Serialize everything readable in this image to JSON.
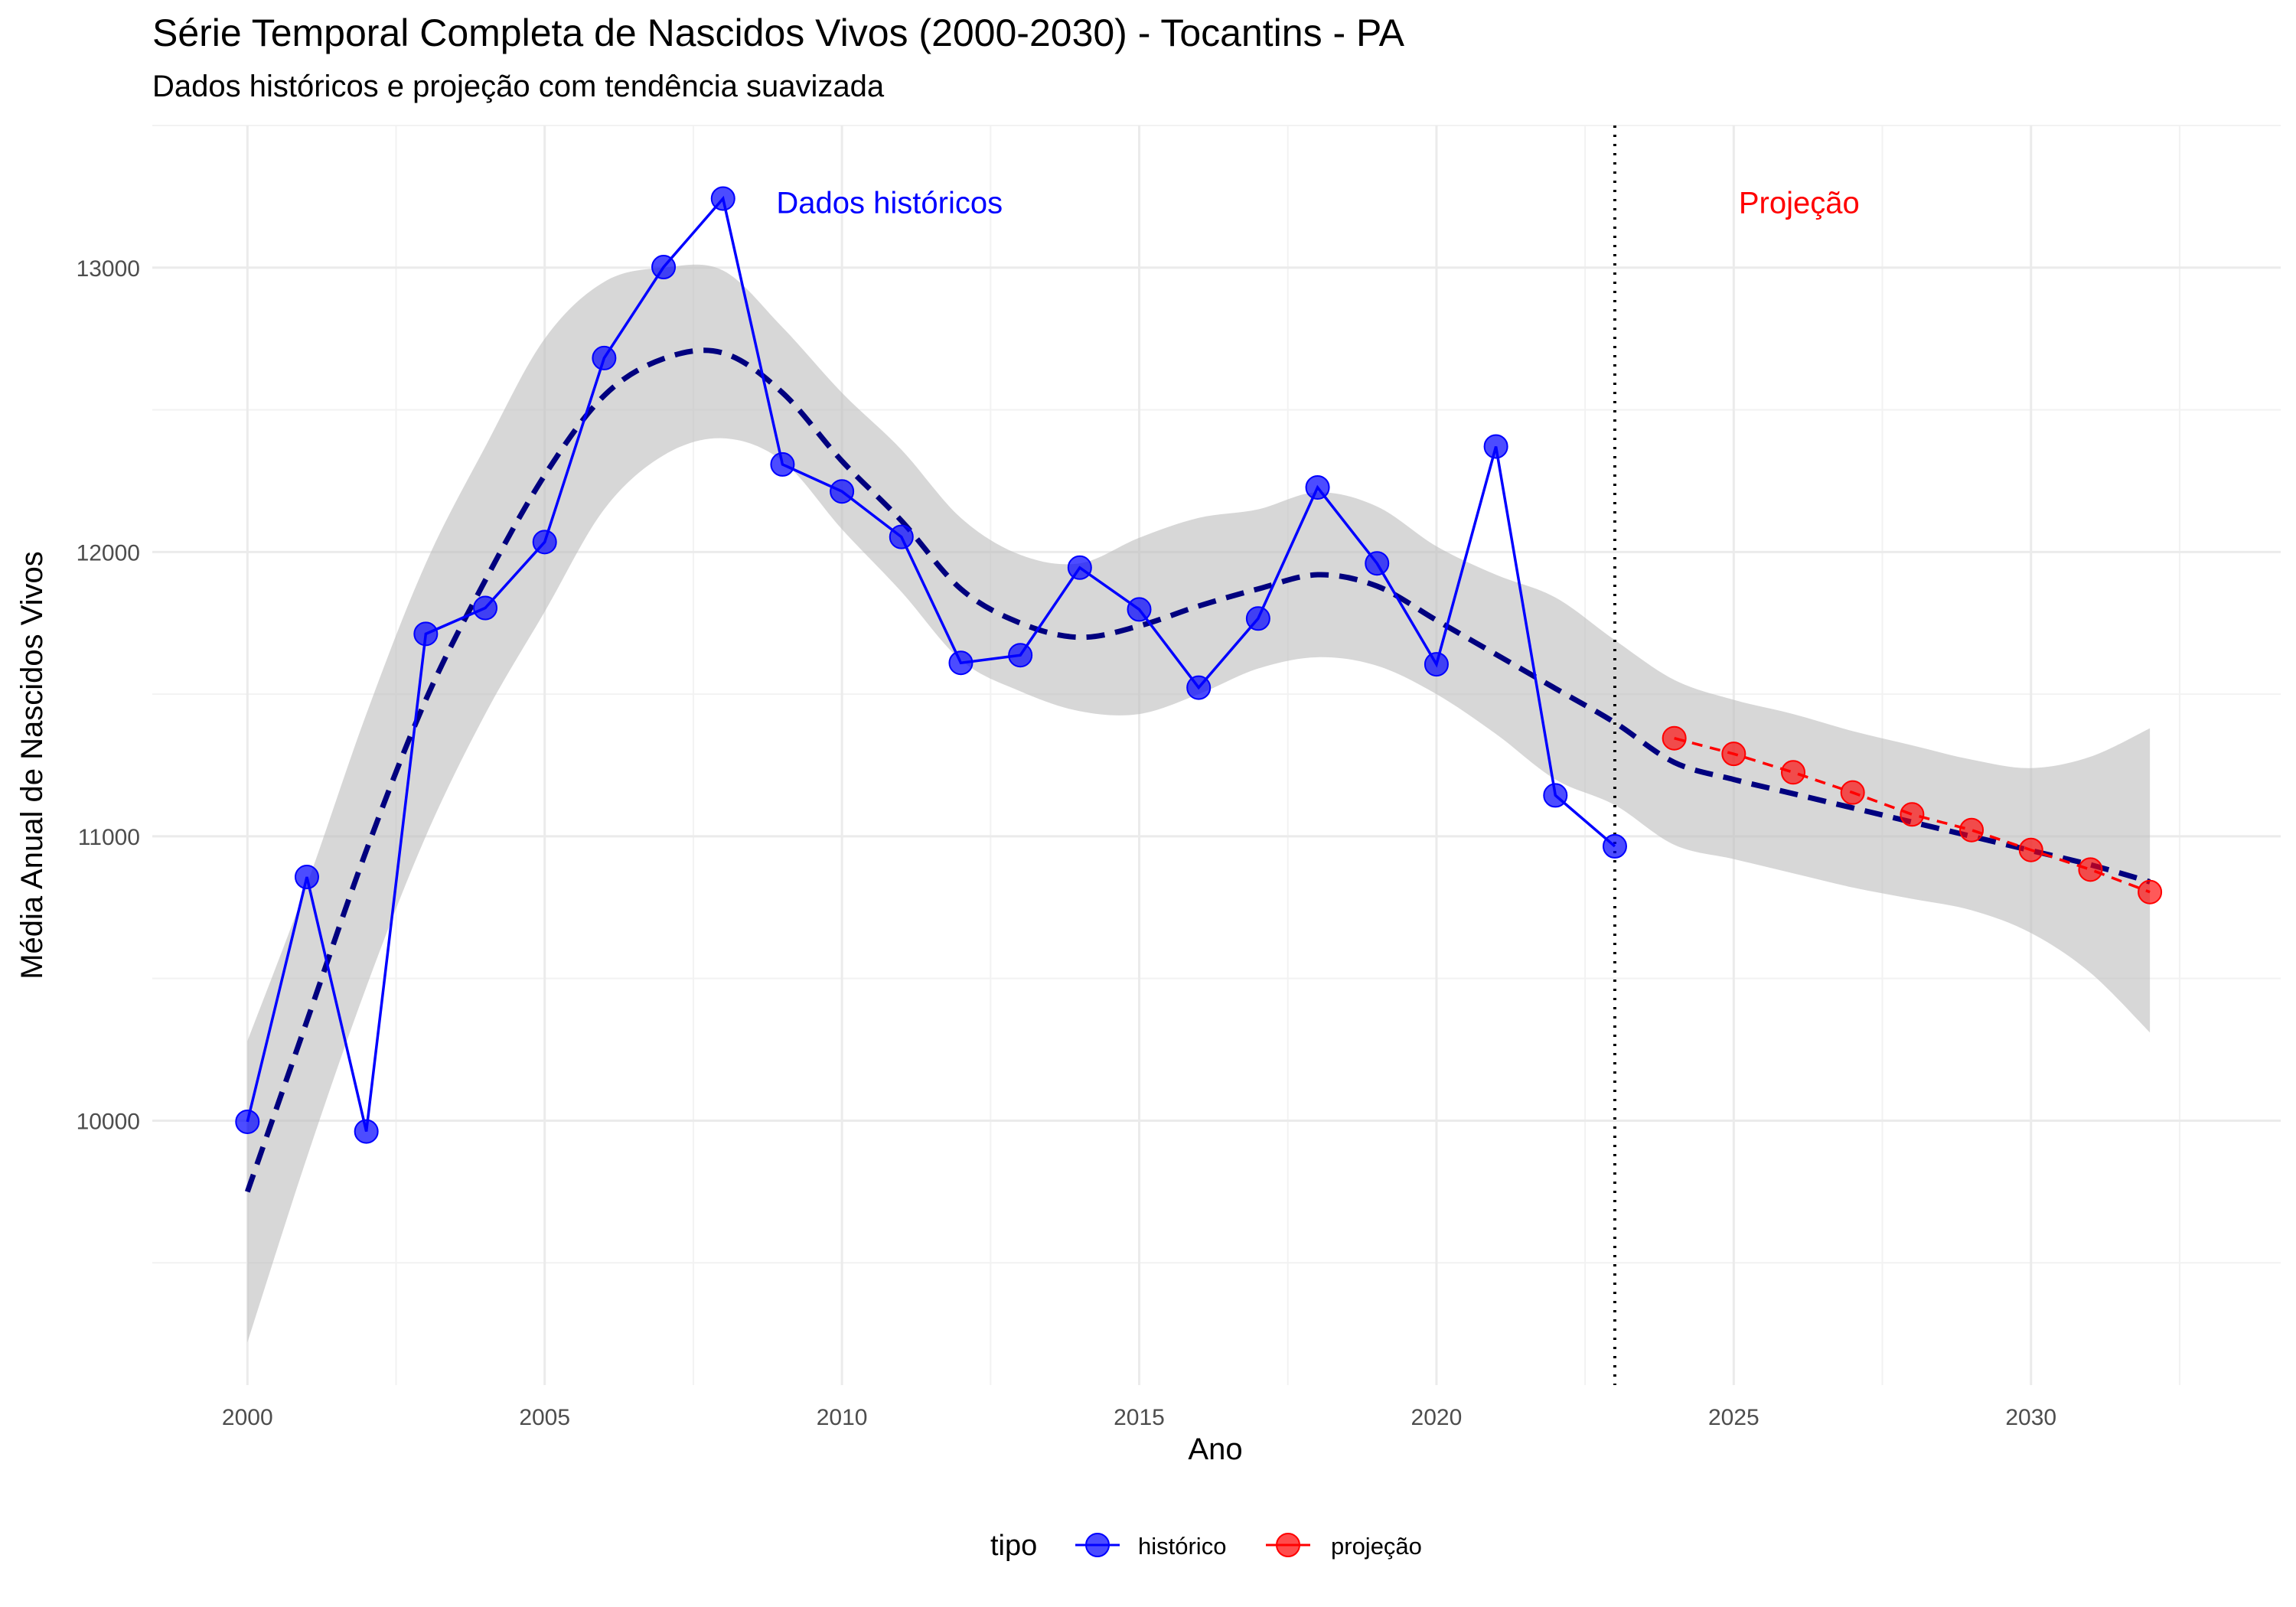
{
  "chart_data": {
    "type": "line",
    "title": "Série Temporal Completa de Nascidos Vivos (2000-2030) -  Tocantins - PA",
    "subtitle": "Dados históricos e projeção com tendência suavizada",
    "xlabel": "Ano",
    "ylabel": "Média Anual de Nascidos Vivos",
    "xlim": [
      1998.4,
      2034.2
    ],
    "ylim": [
      9070,
      13500
    ],
    "x_ticks": [
      2000,
      2005,
      2010,
      2015,
      2020,
      2025,
      2030
    ],
    "y_ticks": [
      10000,
      11000,
      12000,
      13000
    ],
    "grid": true,
    "legend_position": "bottom",
    "legend_title": "tipo",
    "colors": {
      "historico": "#0000ff",
      "projecao": "#ff0000",
      "trend": "#00007f",
      "band": "#bebebe",
      "divider": "#000000"
    },
    "divider_x": 2023,
    "annotations": [
      {
        "text": "Dados históricos",
        "x": 2010.8,
        "y": 13230,
        "color": "#0000ff"
      },
      {
        "text": "Projeção",
        "x": 2026.1,
        "y": 13230,
        "color": "#ff0000"
      }
    ],
    "series": [
      {
        "name": "histórico",
        "x": [
          2000,
          2001,
          2002,
          2003,
          2004,
          2005,
          2006,
          2007,
          2008,
          2009,
          2010,
          2011,
          2012,
          2013,
          2014,
          2015,
          2016,
          2017,
          2018,
          2019,
          2020,
          2021,
          2022,
          2023
        ],
        "values": [
          9996,
          10857,
          9962,
          11712,
          11803,
          12035,
          12682,
          13002,
          13243,
          12308,
          12213,
          12053,
          11610,
          11637,
          11945,
          11798,
          11523,
          11766,
          12227,
          11960,
          11605,
          12371,
          11144,
          10965
        ]
      },
      {
        "name": "projeção",
        "x": [
          2024,
          2025,
          2026,
          2027,
          2028,
          2029,
          2030,
          2031,
          2032
        ],
        "values": [
          11345,
          11290,
          11225,
          11154,
          11077,
          11022,
          10952,
          10883,
          10804
        ]
      }
    ],
    "trend": {
      "x": [
        2000,
        2001,
        2002,
        2003,
        2004,
        2005,
        2006,
        2007,
        2008,
        2009,
        2010,
        2011,
        2012,
        2013,
        2014,
        2015,
        2016,
        2017,
        2018,
        2019,
        2020,
        2021,
        2022,
        2023,
        2024,
        2025,
        2026,
        2027,
        2028,
        2029,
        2030,
        2031,
        2032
      ],
      "values": [
        9750,
        10350,
        10950,
        11480,
        11900,
        12270,
        12550,
        12680,
        12700,
        12560,
        12320,
        12110,
        11870,
        11750,
        11700,
        11740,
        11810,
        11870,
        11920,
        11880,
        11760,
        11640,
        11520,
        11400,
        11260,
        11200,
        11150,
        11100,
        11050,
        11000,
        10950,
        10900,
        10840
      ],
      "lower": [
        9220,
        9870,
        10470,
        11000,
        11430,
        11790,
        12150,
        12340,
        12400,
        12320,
        12080,
        11860,
        11620,
        11510,
        11440,
        11430,
        11500,
        11590,
        11630,
        11600,
        11500,
        11360,
        11200,
        11110,
        10970,
        10920,
        10870,
        10820,
        10780,
        10740,
        10660,
        10520,
        10310
      ],
      "upper": [
        10280,
        10830,
        11430,
        11960,
        12370,
        12750,
        12950,
        13000,
        12990,
        12790,
        12560,
        12360,
        12120,
        11990,
        11960,
        12050,
        12120,
        12150,
        12210,
        12160,
        12020,
        11920,
        11840,
        11690,
        11550,
        11480,
        11430,
        11370,
        11320,
        11270,
        11240,
        11280,
        11380
      ]
    }
  }
}
